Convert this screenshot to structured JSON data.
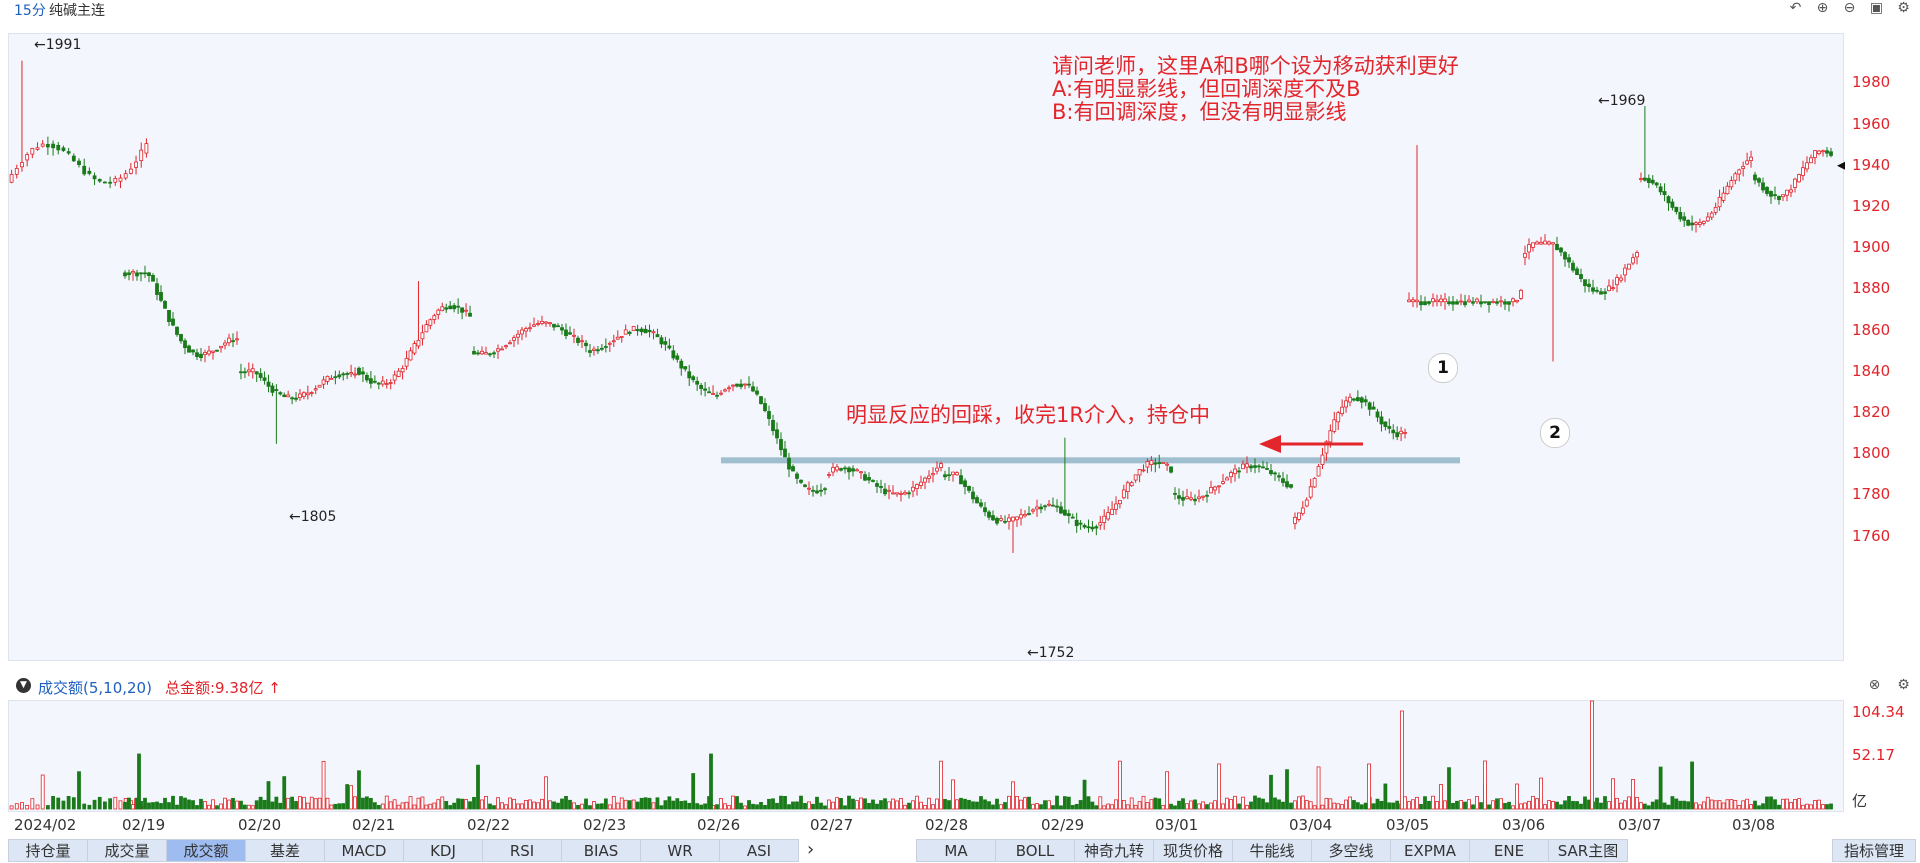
{
  "header": {
    "period": "15分",
    "symbol": "纯碱主连",
    "icons": [
      "undo-icon",
      "zoom-in-icon",
      "zoom-out-icon",
      "layout-icon",
      "settings-icon"
    ]
  },
  "annotations": {
    "question": [
      "请问老师，这里A和B哪个设为移动获利更好",
      "A:有明显影线，但回调深度不及B",
      "B:有回调深度，但没有明显影线"
    ],
    "note": "明显反应的回踩，收完1R介入，持仓中",
    "marker1": "1",
    "marker2": "2"
  },
  "price_labels": {
    "high_1991": "←1991",
    "low_1805": "←1805",
    "low_1752": "←1752",
    "high_1969": "←1969"
  },
  "volume": {
    "title": "成交额(5,10,20)",
    "total_label": "总金额:9.38亿",
    "unit": "亿",
    "ticks": [
      "104.34",
      "52.17"
    ]
  },
  "x_dates": [
    "2024/02",
    "02/19",
    "02/20",
    "02/21",
    "02/22",
    "02/23",
    "02/26",
    "02/27",
    "02/28",
    "02/29",
    "03/01",
    "03/04",
    "03/05",
    "03/06",
    "03/07",
    "03/08"
  ],
  "tabs_left": [
    {
      "label": "持仓量",
      "active": false
    },
    {
      "label": "成交量",
      "active": false
    },
    {
      "label": "成交额",
      "active": true
    },
    {
      "label": "基差",
      "active": false
    },
    {
      "label": "MACD",
      "active": false
    },
    {
      "label": "KDJ",
      "active": false
    },
    {
      "label": "RSI",
      "active": false
    },
    {
      "label": "BIAS",
      "active": false
    },
    {
      "label": "WR",
      "active": false
    },
    {
      "label": "ASI",
      "active": false
    }
  ],
  "tabs_right": [
    {
      "label": "MA"
    },
    {
      "label": "BOLL"
    },
    {
      "label": "神奇九转"
    },
    {
      "label": "现货价格"
    },
    {
      "label": "牛能线"
    },
    {
      "label": "多空线"
    },
    {
      "label": "EXPMA"
    },
    {
      "label": "ENE"
    },
    {
      "label": "SAR主图"
    }
  ],
  "manage_button": "指标管理",
  "chart_data": {
    "type": "candlestick",
    "y_ticks": [
      1980,
      1960,
      1940,
      1920,
      1900,
      1880,
      1860,
      1840,
      1820,
      1800,
      1780,
      1760
    ],
    "y_range": [
      1748,
      1995
    ],
    "support_level": 1797,
    "last_price_marker": 1940,
    "days": [
      {
        "date": "2024/02",
        "o": 1932,
        "h": 1991,
        "l": 1930,
        "c": 1950
      },
      {
        "date": "02/19",
        "o": 1890,
        "h": 1890,
        "l": 1832,
        "c": 1845
      },
      {
        "date": "02/20",
        "o": 1840,
        "h": 1842,
        "l": 1805,
        "c": 1830
      },
      {
        "date": "02/21",
        "o": 1840,
        "h": 1884,
        "l": 1830,
        "c": 1865
      },
      {
        "date": "02/22",
        "o": 1855,
        "h": 1868,
        "l": 1838,
        "c": 1858
      },
      {
        "date": "02/23",
        "o": 1860,
        "h": 1870,
        "l": 1825,
        "c": 1838
      },
      {
        "date": "02/26",
        "o": 1833,
        "h": 1836,
        "l": 1778,
        "c": 1788
      },
      {
        "date": "02/27",
        "o": 1785,
        "h": 1800,
        "l": 1766,
        "c": 1790
      },
      {
        "date": "02/28",
        "o": 1788,
        "h": 1792,
        "l": 1752,
        "c": 1765
      },
      {
        "date": "02/29",
        "o": 1770,
        "h": 1808,
        "l": 1760,
        "c": 1788
      },
      {
        "date": "03/01",
        "o": 1785,
        "h": 1803,
        "l": 1770,
        "c": 1788
      },
      {
        "date": "03/04",
        "o": 1785,
        "h": 1845,
        "l": 1762,
        "c": 1830
      },
      {
        "date": "03/05",
        "o": 1832,
        "h": 1950,
        "l": 1872,
        "c": 1890
      },
      {
        "date": "03/06",
        "o": 1890,
        "h": 1904,
        "l": 1845,
        "c": 1893
      },
      {
        "date": "03/07",
        "o": 1920,
        "h": 1969,
        "l": 1908,
        "c": 1930
      },
      {
        "date": "03/08",
        "o": 1930,
        "h": 1952,
        "l": 1914,
        "c": 1940
      }
    ]
  }
}
